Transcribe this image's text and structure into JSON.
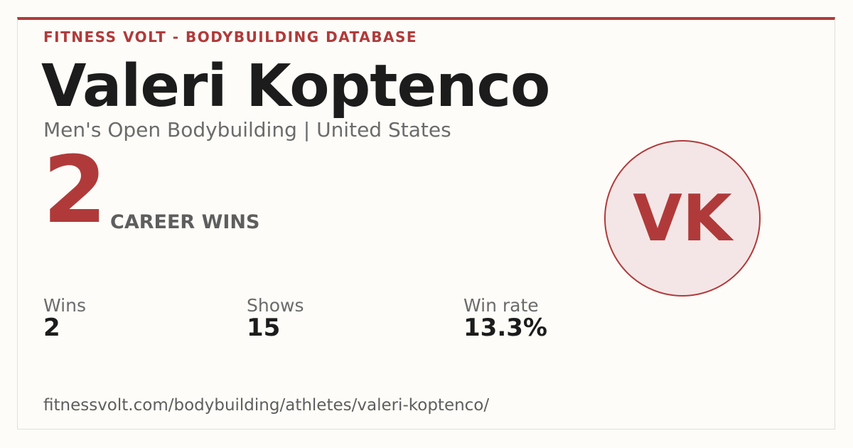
{
  "header": {
    "brand": "FITNESS VOLT - BODYBUILDING DATABASE",
    "name": "Valeri Koptenco",
    "subtitle": "Men's Open Bodybuilding | United States"
  },
  "hero": {
    "number": "2",
    "label": "CAREER WINS"
  },
  "avatar": {
    "initials": "VK"
  },
  "stats": [
    {
      "label": "Wins",
      "value": "2"
    },
    {
      "label": "Shows",
      "value": "15"
    },
    {
      "label": "Win rate",
      "value": "13.3%"
    }
  ],
  "footer": {
    "url": "fitnessvolt.com/bodybuilding/athletes/valeri-koptenco/"
  }
}
